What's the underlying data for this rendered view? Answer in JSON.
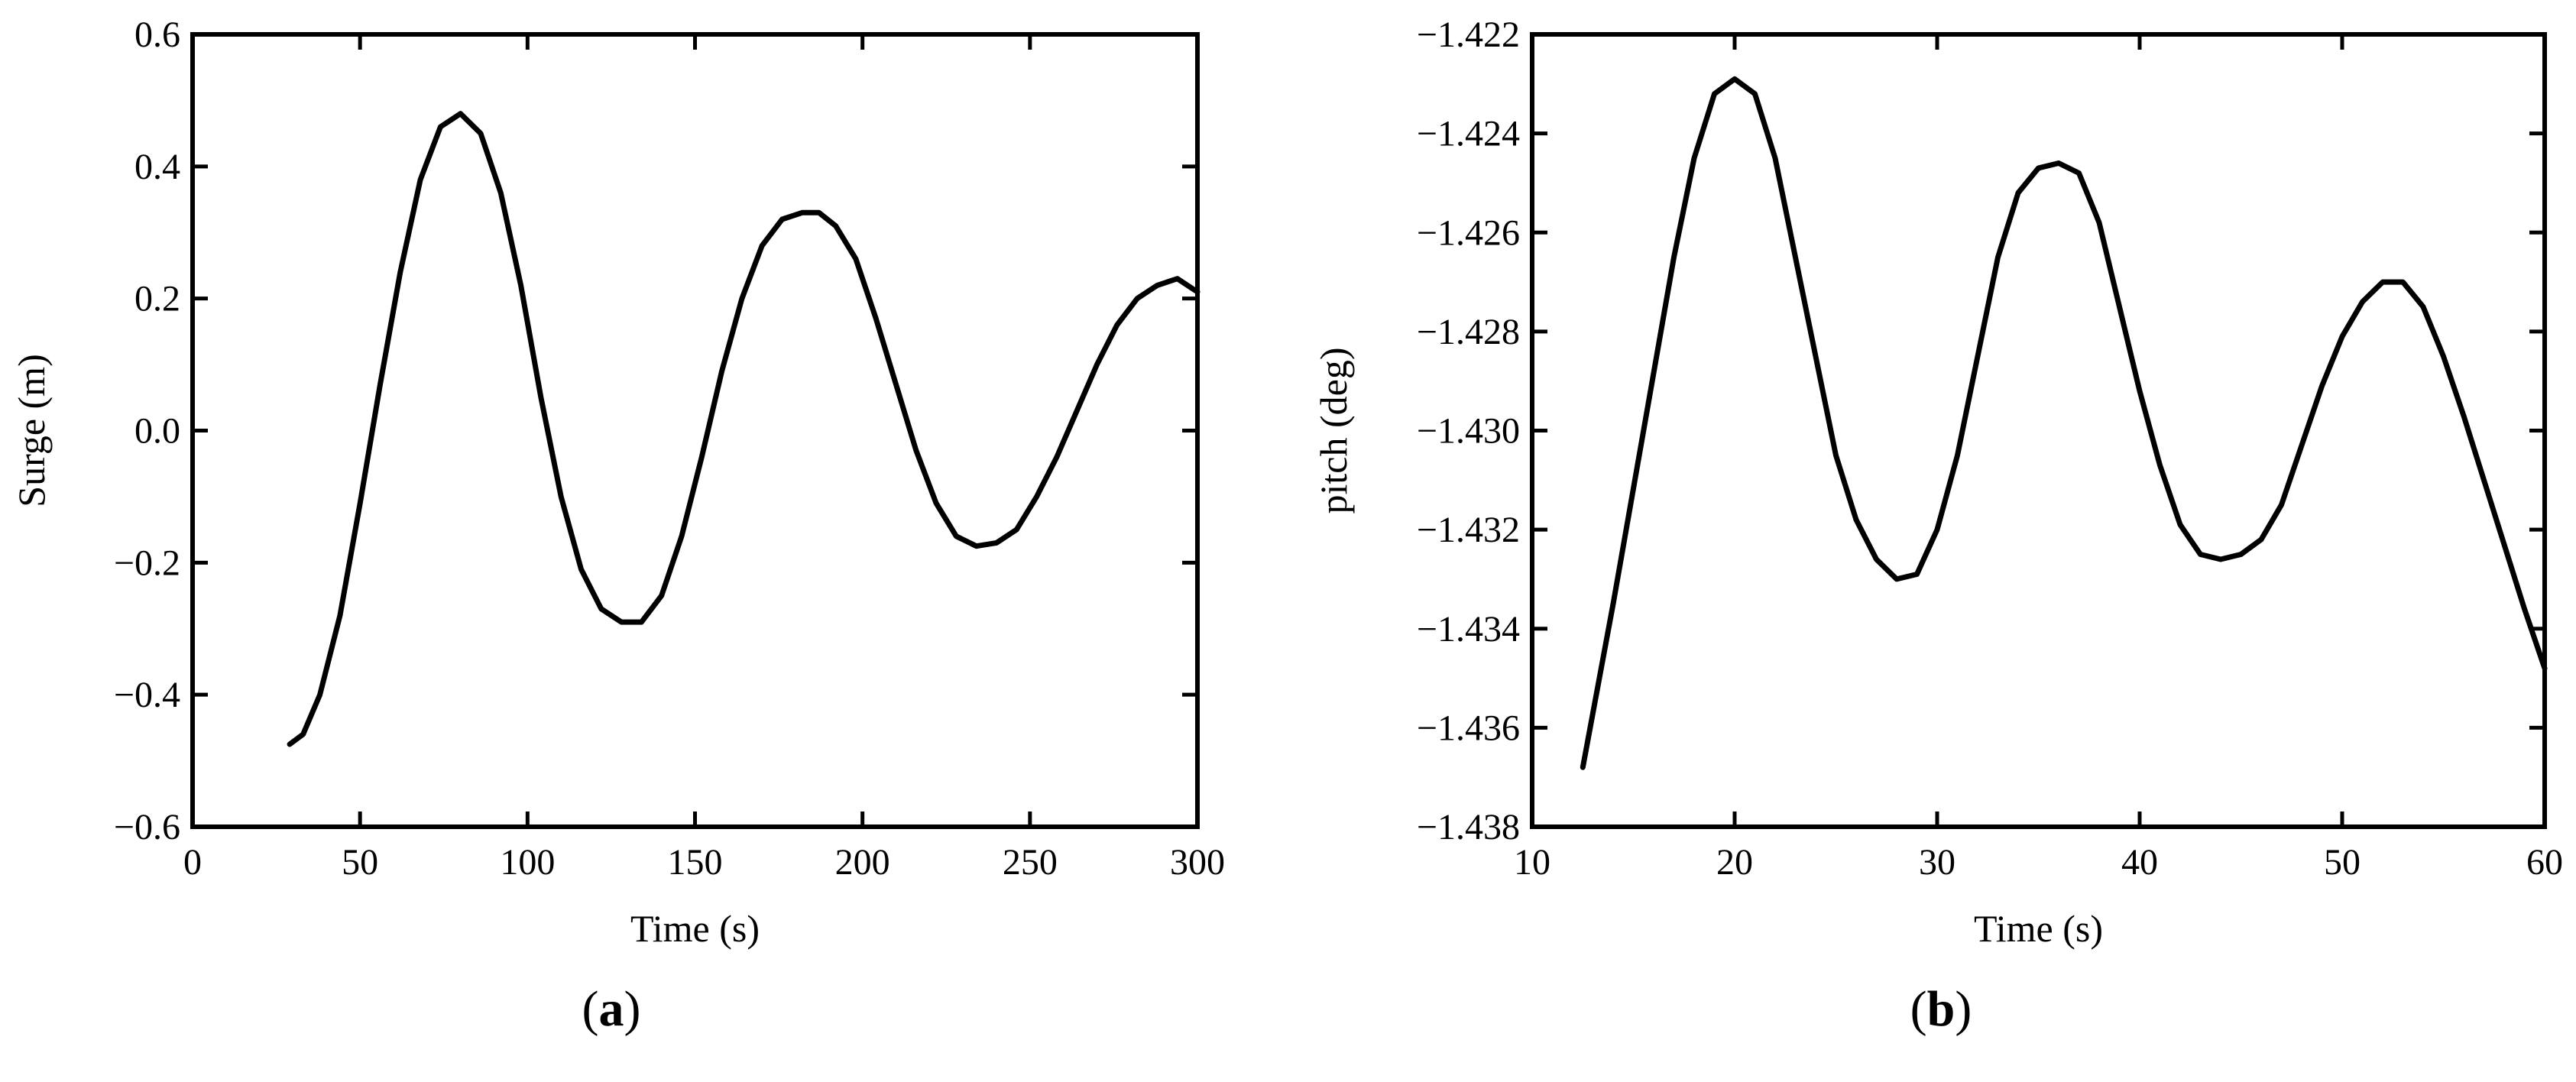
{
  "chart_data": [
    {
      "type": "line",
      "panel_label": "a",
      "title": "",
      "xlabel": "Time (s)",
      "ylabel": "Surge (m)",
      "xlim": [
        0,
        300
      ],
      "ylim": [
        -0.6,
        0.6
      ],
      "xticks": [
        0,
        50,
        100,
        150,
        200,
        250,
        300
      ],
      "xtick_labels": [
        "0",
        "50",
        "100",
        "150",
        "200",
        "250",
        "300"
      ],
      "yticks": [
        -0.6,
        -0.4,
        -0.2,
        0.0,
        0.2,
        0.4,
        0.6
      ],
      "ytick_labels": [
        "−0.6",
        "−0.4",
        "−0.2",
        "0.0",
        "0.2",
        "0.4",
        "0.6"
      ],
      "grid": false,
      "series": [
        {
          "color": "#000000",
          "x": [
            29,
            33,
            38,
            44,
            50,
            56,
            62,
            68,
            74,
            80,
            86,
            92,
            98,
            104,
            110,
            116,
            122,
            128,
            134,
            140,
            146,
            152,
            158,
            164,
            170,
            176,
            182,
            187,
            192,
            198,
            204,
            210,
            216,
            222,
            228,
            234,
            240,
            246,
            252,
            258,
            264,
            270,
            276,
            282,
            288,
            294,
            300
          ],
          "y": [
            -0.475,
            -0.46,
            -0.4,
            -0.28,
            -0.11,
            0.07,
            0.24,
            0.38,
            0.46,
            0.48,
            0.45,
            0.36,
            0.22,
            0.05,
            -0.1,
            -0.21,
            -0.27,
            -0.29,
            -0.29,
            -0.25,
            -0.16,
            -0.04,
            0.09,
            0.2,
            0.28,
            0.32,
            0.33,
            0.33,
            0.31,
            0.26,
            0.17,
            0.07,
            -0.03,
            -0.11,
            -0.16,
            -0.175,
            -0.17,
            -0.15,
            -0.1,
            -0.04,
            0.03,
            0.1,
            0.16,
            0.2,
            0.22,
            0.23,
            0.21
          ]
        }
      ]
    },
    {
      "type": "line",
      "panel_label": "b",
      "title": "",
      "xlabel": "Time (s)",
      "ylabel": "pitch (deg)",
      "xlim": [
        10,
        60
      ],
      "ylim": [
        -1.438,
        -1.422
      ],
      "xticks": [
        10,
        20,
        30,
        40,
        50,
        60
      ],
      "xtick_labels": [
        "10",
        "20",
        "30",
        "40",
        "50",
        "60"
      ],
      "yticks": [
        -1.438,
        -1.436,
        -1.434,
        -1.432,
        -1.43,
        -1.428,
        -1.426,
        -1.424,
        -1.422
      ],
      "ytick_labels": [
        "−1.438",
        "−1.436",
        "−1.434",
        "−1.432",
        "−1.430",
        "−1.428",
        "−1.426",
        "−1.424",
        "−1.422"
      ],
      "grid": false,
      "series": [
        {
          "color": "#000000",
          "x": [
            12.5,
            14,
            15.5,
            17,
            18,
            19,
            20,
            21,
            22,
            23,
            24,
            25,
            26,
            27,
            28,
            29,
            30,
            31,
            32,
            33,
            34,
            35,
            36,
            37,
            38,
            39,
            40,
            41,
            42,
            43,
            44,
            45,
            46,
            47,
            48,
            49,
            50,
            51,
            52,
            53,
            54,
            55,
            56,
            57,
            58,
            59,
            60
          ],
          "y": [
            -1.4368,
            -1.4335,
            -1.43,
            -1.4265,
            -1.4245,
            -1.4232,
            -1.4229,
            -1.4232,
            -1.4245,
            -1.4265,
            -1.4285,
            -1.4305,
            -1.4318,
            -1.4326,
            -1.433,
            -1.4329,
            -1.432,
            -1.4305,
            -1.4285,
            -1.4265,
            -1.4252,
            -1.4247,
            -1.4246,
            -1.4248,
            -1.4258,
            -1.4275,
            -1.4292,
            -1.4307,
            -1.4319,
            -1.4325,
            -1.4326,
            -1.4325,
            -1.4322,
            -1.4315,
            -1.4303,
            -1.4291,
            -1.4281,
            -1.4274,
            -1.427,
            -1.427,
            -1.4275,
            -1.4285,
            -1.4297,
            -1.431,
            -1.4323,
            -1.4336,
            -1.4348
          ]
        }
      ]
    }
  ]
}
